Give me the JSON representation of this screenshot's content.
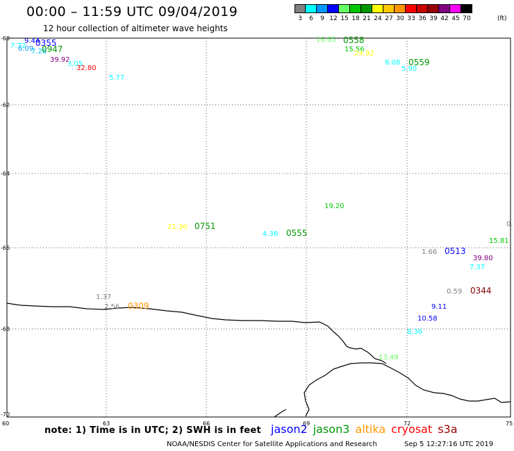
{
  "header": {
    "title": "00:00 – 11:59 UTC 09/04/2019",
    "subtitle": "12 hour collection of altimeter wave heights"
  },
  "legend": {
    "unit": "(ft)",
    "items": [
      {
        "value": "3",
        "color": "#808080"
      },
      {
        "value": "6",
        "color": "#00ffff"
      },
      {
        "value": "9",
        "color": "#0096ff"
      },
      {
        "value": "12",
        "color": "#0000ff"
      },
      {
        "value": "15",
        "color": "#64ff64"
      },
      {
        "value": "18",
        "color": "#00c800"
      },
      {
        "value": "21",
        "color": "#009600"
      },
      {
        "value": "24",
        "color": "#ffff00"
      },
      {
        "value": "27",
        "color": "#ffc800"
      },
      {
        "value": "30",
        "color": "#ff9600"
      },
      {
        "value": "33",
        "color": "#ff0000"
      },
      {
        "value": "36",
        "color": "#c80000"
      },
      {
        "value": "39",
        "color": "#960000"
      },
      {
        "value": "42",
        "color": "#800080"
      },
      {
        "value": "45",
        "color": "#ff00ff"
      },
      {
        "value": "70",
        "color": "#000000"
      }
    ]
  },
  "axes": {
    "lat_labels": [
      "-60",
      "-62",
      "-64",
      "-66",
      "-68",
      "-70"
    ],
    "lon_labels": [
      "60",
      "63",
      "66",
      "69",
      "72",
      "75"
    ]
  },
  "observations": [
    {
      "text": "7.72",
      "color": "#00ffff"
    },
    {
      "text": "9.44",
      "color": "#0000ff"
    },
    {
      "text": "0355",
      "color": "#0000ff"
    },
    {
      "text": "6.09",
      "color": "#0096ff"
    },
    {
      "text": "7.28",
      "color": "#00c8ff"
    },
    {
      "text": "0947",
      "color": "#009600"
    },
    {
      "text": "39.92",
      "color": "#800080"
    },
    {
      "text": "3.05",
      "color": "#00ffff"
    },
    {
      "text": "32.80",
      "color": "#ff0000"
    },
    {
      "text": "5.77",
      "color": "#00ffff"
    },
    {
      "text": "16.65",
      "color": "#64ff64"
    },
    {
      "text": "0558",
      "color": "#009600"
    },
    {
      "text": "15.56",
      "color": "#00c800"
    },
    {
      "text": "24.92",
      "color": "#ffff00"
    },
    {
      "text": "8.08",
      "color": "#00ffff"
    },
    {
      "text": "0559",
      "color": "#009600"
    },
    {
      "text": "5.90",
      "color": "#00ffff"
    },
    {
      "text": "19.20",
      "color": "#00c800"
    },
    {
      "text": "21.30",
      "color": "#ffff00"
    },
    {
      "text": "0751",
      "color": "#009600"
    },
    {
      "text": "4.36",
      "color": "#00ffff"
    },
    {
      "text": "0555",
      "color": "#009600"
    },
    {
      "text": "0.",
      "color": "#808080"
    },
    {
      "text": "15.81",
      "color": "#00c800"
    },
    {
      "text": "1.66",
      "color": "#808080"
    },
    {
      "text": "0513",
      "color": "#0000ff"
    },
    {
      "text": "39.80",
      "color": "#800080"
    },
    {
      "text": "7.37",
      "color": "#00ffff"
    },
    {
      "text": "0.59",
      "color": "#808080"
    },
    {
      "text": "0344",
      "color": "#800000"
    },
    {
      "text": "1.37",
      "color": "#808080"
    },
    {
      "text": "2.56",
      "color": "#808080"
    },
    {
      "text": "0309",
      "color": "#ff9600"
    },
    {
      "text": "9.11",
      "color": "#0000ff"
    },
    {
      "text": "10.58",
      "color": "#0000ff"
    },
    {
      "text": "8.36",
      "color": "#00ffff"
    },
    {
      "text": "13.49",
      "color": "#64ff64"
    }
  ],
  "footer": {
    "note": "note: 1) Time is in UTC; 2) SWH is in feet",
    "satellites": [
      {
        "name": "jason2",
        "color": "#0000ff"
      },
      {
        "name": "jason3",
        "color": "#009600"
      },
      {
        "name": "altika",
        "color": "#ff9600"
      },
      {
        "name": "cryosat",
        "color": "#ff0000"
      },
      {
        "name": "s3a",
        "color": "#960000"
      }
    ],
    "credit": "NOAA/NESDIS Center for Satellite Applications and Research",
    "stamp": "Sep  5 12:27:16 UTC 2019"
  }
}
